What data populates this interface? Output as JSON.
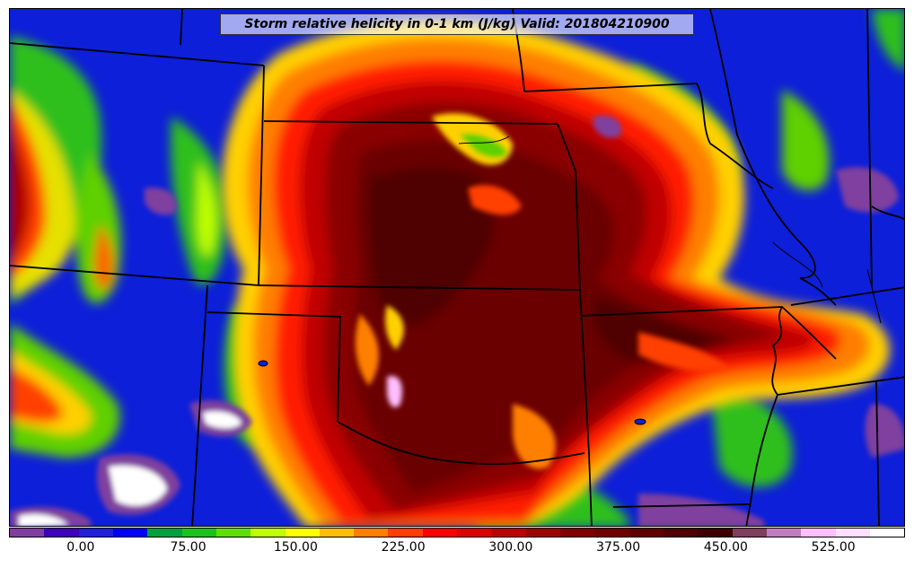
{
  "title": "Storm relative helicity in 0-1 km (J/kg) Valid: 201804210900",
  "colorbar": {
    "min": -50,
    "max": 575,
    "colors": [
      "#7f3f9f",
      "#3f00bf",
      "#1f1fdf",
      "#0000ff",
      "#009f3f",
      "#1fbf1f",
      "#5fdf00",
      "#bfff00",
      "#ffff00",
      "#ffbf00",
      "#ff7f00",
      "#ff3f00",
      "#ff0000",
      "#df0000",
      "#bf0000",
      "#9f0000",
      "#7f0000",
      "#6f0000",
      "#5f0000",
      "#4f0000",
      "#3f0000",
      "#7f3f5f",
      "#bf7fbf",
      "#ffbfff",
      "#ffdfff",
      "#ffffff"
    ],
    "ticks": [
      {
        "value": 0,
        "label": "0.00"
      },
      {
        "value": 75,
        "label": "75.00"
      },
      {
        "value": 150,
        "label": "150.00"
      },
      {
        "value": 225,
        "label": "225.00"
      },
      {
        "value": 300,
        "label": "300.00"
      },
      {
        "value": 375,
        "label": "375.00"
      },
      {
        "value": 450,
        "label": "450.00"
      },
      {
        "value": 525,
        "label": "525.00"
      }
    ]
  },
  "map": {
    "field": "Storm relative helicity 0-1 km",
    "units": "J/kg",
    "valid_time": "201804210900",
    "region": "Central Plains / Midwest United States",
    "features": [
      "state-boundaries",
      "river-boundaries"
    ]
  }
}
